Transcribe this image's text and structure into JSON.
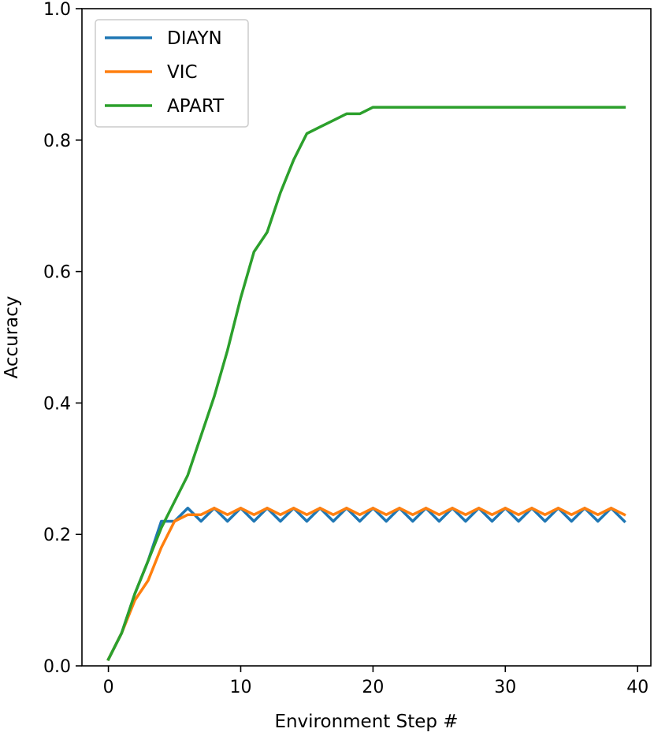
{
  "chart_data": {
    "type": "line",
    "xlabel": "Environment Step #",
    "ylabel": "Accuracy",
    "xlim": [
      -2,
      41
    ],
    "ylim": [
      0.0,
      1.0
    ],
    "xticks": [
      0,
      10,
      20,
      30,
      40
    ],
    "yticks": [
      0.0,
      0.2,
      0.4,
      0.6,
      0.8,
      1.0
    ],
    "xtick_labels": [
      "0",
      "10",
      "20",
      "30",
      "40"
    ],
    "ytick_labels": [
      "0.0",
      "0.2",
      "0.4",
      "0.6",
      "0.8",
      "1.0"
    ],
    "grid": false,
    "legend_position": "top-left",
    "x": [
      0,
      1,
      2,
      3,
      4,
      5,
      6,
      7,
      8,
      9,
      10,
      11,
      12,
      13,
      14,
      15,
      16,
      17,
      18,
      19,
      20,
      21,
      22,
      23,
      24,
      25,
      26,
      27,
      28,
      29,
      30,
      31,
      32,
      33,
      34,
      35,
      36,
      37,
      38,
      39
    ],
    "series": [
      {
        "name": "DIAYN",
        "color": "#1f77b4",
        "values": [
          0.01,
          0.05,
          0.11,
          0.16,
          0.22,
          0.22,
          0.24,
          0.22,
          0.24,
          0.22,
          0.24,
          0.22,
          0.24,
          0.22,
          0.24,
          0.22,
          0.24,
          0.22,
          0.24,
          0.22,
          0.24,
          0.22,
          0.24,
          0.22,
          0.24,
          0.22,
          0.24,
          0.22,
          0.24,
          0.22,
          0.24,
          0.22,
          0.24,
          0.22,
          0.24,
          0.22,
          0.24,
          0.22,
          0.24,
          0.22
        ]
      },
      {
        "name": "VIC",
        "color": "#ff7f0e",
        "values": [
          0.01,
          0.05,
          0.1,
          0.13,
          0.18,
          0.22,
          0.23,
          0.23,
          0.24,
          0.23,
          0.24,
          0.23,
          0.24,
          0.23,
          0.24,
          0.23,
          0.24,
          0.23,
          0.24,
          0.23,
          0.24,
          0.23,
          0.24,
          0.23,
          0.24,
          0.23,
          0.24,
          0.23,
          0.24,
          0.23,
          0.24,
          0.23,
          0.24,
          0.23,
          0.24,
          0.23,
          0.24,
          0.23,
          0.24,
          0.23
        ]
      },
      {
        "name": "APART",
        "color": "#2ca02c",
        "values": [
          0.01,
          0.05,
          0.11,
          0.16,
          0.21,
          0.25,
          0.29,
          0.35,
          0.41,
          0.48,
          0.56,
          0.63,
          0.66,
          0.72,
          0.77,
          0.81,
          0.82,
          0.83,
          0.84,
          0.84,
          0.85,
          0.85,
          0.85,
          0.85,
          0.85,
          0.85,
          0.85,
          0.85,
          0.85,
          0.85,
          0.85,
          0.85,
          0.85,
          0.85,
          0.85,
          0.85,
          0.85,
          0.85,
          0.85,
          0.85
        ]
      }
    ]
  }
}
